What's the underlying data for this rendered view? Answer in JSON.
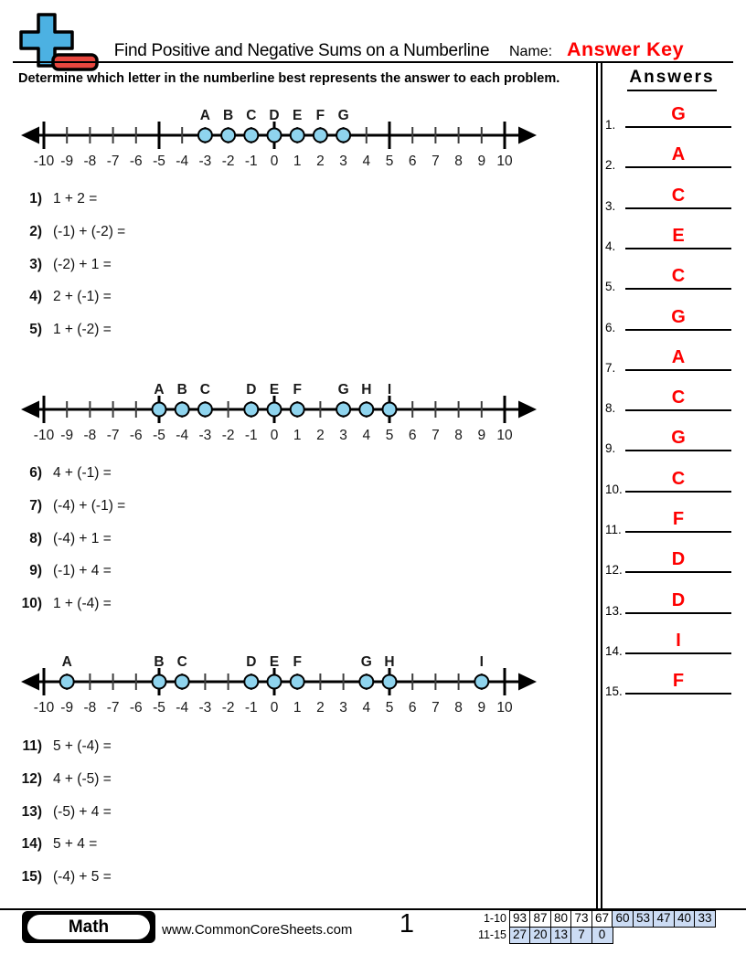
{
  "header": {
    "title": "Find Positive and Negative Sums on a Numberline",
    "name_label": "Name:",
    "name_value": "Answer Key"
  },
  "instruction": "Determine which letter in the numberline best represents the answer to each problem.",
  "answers_panel": {
    "heading": "Answers",
    "items": [
      {
        "num": "1.",
        "answer": "G"
      },
      {
        "num": "2.",
        "answer": "A"
      },
      {
        "num": "3.",
        "answer": "C"
      },
      {
        "num": "4.",
        "answer": "E"
      },
      {
        "num": "5.",
        "answer": "C"
      },
      {
        "num": "6.",
        "answer": "G"
      },
      {
        "num": "7.",
        "answer": "A"
      },
      {
        "num": "8.",
        "answer": "C"
      },
      {
        "num": "9.",
        "answer": "G"
      },
      {
        "num": "10.",
        "answer": "C"
      },
      {
        "num": "11.",
        "answer": "F"
      },
      {
        "num": "12.",
        "answer": "D"
      },
      {
        "num": "13.",
        "answer": "D"
      },
      {
        "num": "14.",
        "answer": "I"
      },
      {
        "num": "15.",
        "answer": "F"
      }
    ]
  },
  "numberlines": [
    {
      "min": -10,
      "max": 10,
      "points": [
        {
          "label": "A",
          "value": -3
        },
        {
          "label": "B",
          "value": -2
        },
        {
          "label": "C",
          "value": -1
        },
        {
          "label": "D",
          "value": 0
        },
        {
          "label": "E",
          "value": 1
        },
        {
          "label": "F",
          "value": 2
        },
        {
          "label": "G",
          "value": 3
        }
      ]
    },
    {
      "min": -10,
      "max": 10,
      "points": [
        {
          "label": "A",
          "value": -5
        },
        {
          "label": "B",
          "value": -4
        },
        {
          "label": "C",
          "value": -3
        },
        {
          "label": "D",
          "value": -1
        },
        {
          "label": "E",
          "value": 0
        },
        {
          "label": "F",
          "value": 1
        },
        {
          "label": "G",
          "value": 3
        },
        {
          "label": "H",
          "value": 4
        },
        {
          "label": "I",
          "value": 5
        }
      ]
    },
    {
      "min": -10,
      "max": 10,
      "points": [
        {
          "label": "A",
          "value": -9
        },
        {
          "label": "B",
          "value": -5
        },
        {
          "label": "C",
          "value": -4
        },
        {
          "label": "D",
          "value": -1
        },
        {
          "label": "E",
          "value": 0
        },
        {
          "label": "F",
          "value": 1
        },
        {
          "label": "G",
          "value": 4
        },
        {
          "label": "H",
          "value": 5
        },
        {
          "label": "I",
          "value": 9
        }
      ]
    }
  ],
  "problems": [
    {
      "num": "1)",
      "expr": "1 + 2 ="
    },
    {
      "num": "2)",
      "expr": "(-1) + (-2) ="
    },
    {
      "num": "3)",
      "expr": "(-2) + 1 ="
    },
    {
      "num": "4)",
      "expr": "2 + (-1) ="
    },
    {
      "num": "5)",
      "expr": "1 + (-2) ="
    },
    {
      "num": "6)",
      "expr": "4 + (-1) ="
    },
    {
      "num": "7)",
      "expr": "(-4) + (-1) ="
    },
    {
      "num": "8)",
      "expr": "(-4) + 1 ="
    },
    {
      "num": "9)",
      "expr": "(-1) + 4 ="
    },
    {
      "num": "10)",
      "expr": "1 + (-4) ="
    },
    {
      "num": "11)",
      "expr": "5 + (-4) ="
    },
    {
      "num": "12)",
      "expr": "4 + (-5) ="
    },
    {
      "num": "13)",
      "expr": "(-5) + 4 ="
    },
    {
      "num": "14)",
      "expr": "5 + 4 ="
    },
    {
      "num": "15)",
      "expr": "(-4) + 5 ="
    }
  ],
  "footer": {
    "subject": "Math",
    "website": "www.CommonCoreSheets.com",
    "page_number": "1",
    "score_table": {
      "rows": [
        {
          "label": "1-10",
          "cells": [
            {
              "value": "93",
              "shaded": false
            },
            {
              "value": "87",
              "shaded": false
            },
            {
              "value": "80",
              "shaded": false
            },
            {
              "value": "73",
              "shaded": false
            },
            {
              "value": "67",
              "shaded": false
            },
            {
              "value": "60",
              "shaded": true
            },
            {
              "value": "53",
              "shaded": true
            },
            {
              "value": "47",
              "shaded": true
            },
            {
              "value": "40",
              "shaded": true
            },
            {
              "value": "33",
              "shaded": true
            }
          ]
        },
        {
          "label": "11-15",
          "cells": [
            {
              "value": "27",
              "shaded": true
            },
            {
              "value": "20",
              "shaded": true
            },
            {
              "value": "13",
              "shaded": true
            },
            {
              "value": "7",
              "shaded": true
            },
            {
              "value": "0",
              "shaded": true
            }
          ]
        }
      ]
    }
  },
  "colors": {
    "answer-red": "#fe0000",
    "point-fill": "#8fd4ee",
    "logo-blue": "#4cb1e2",
    "logo-red": "#e8473f",
    "shade": "#ccdcf4"
  }
}
